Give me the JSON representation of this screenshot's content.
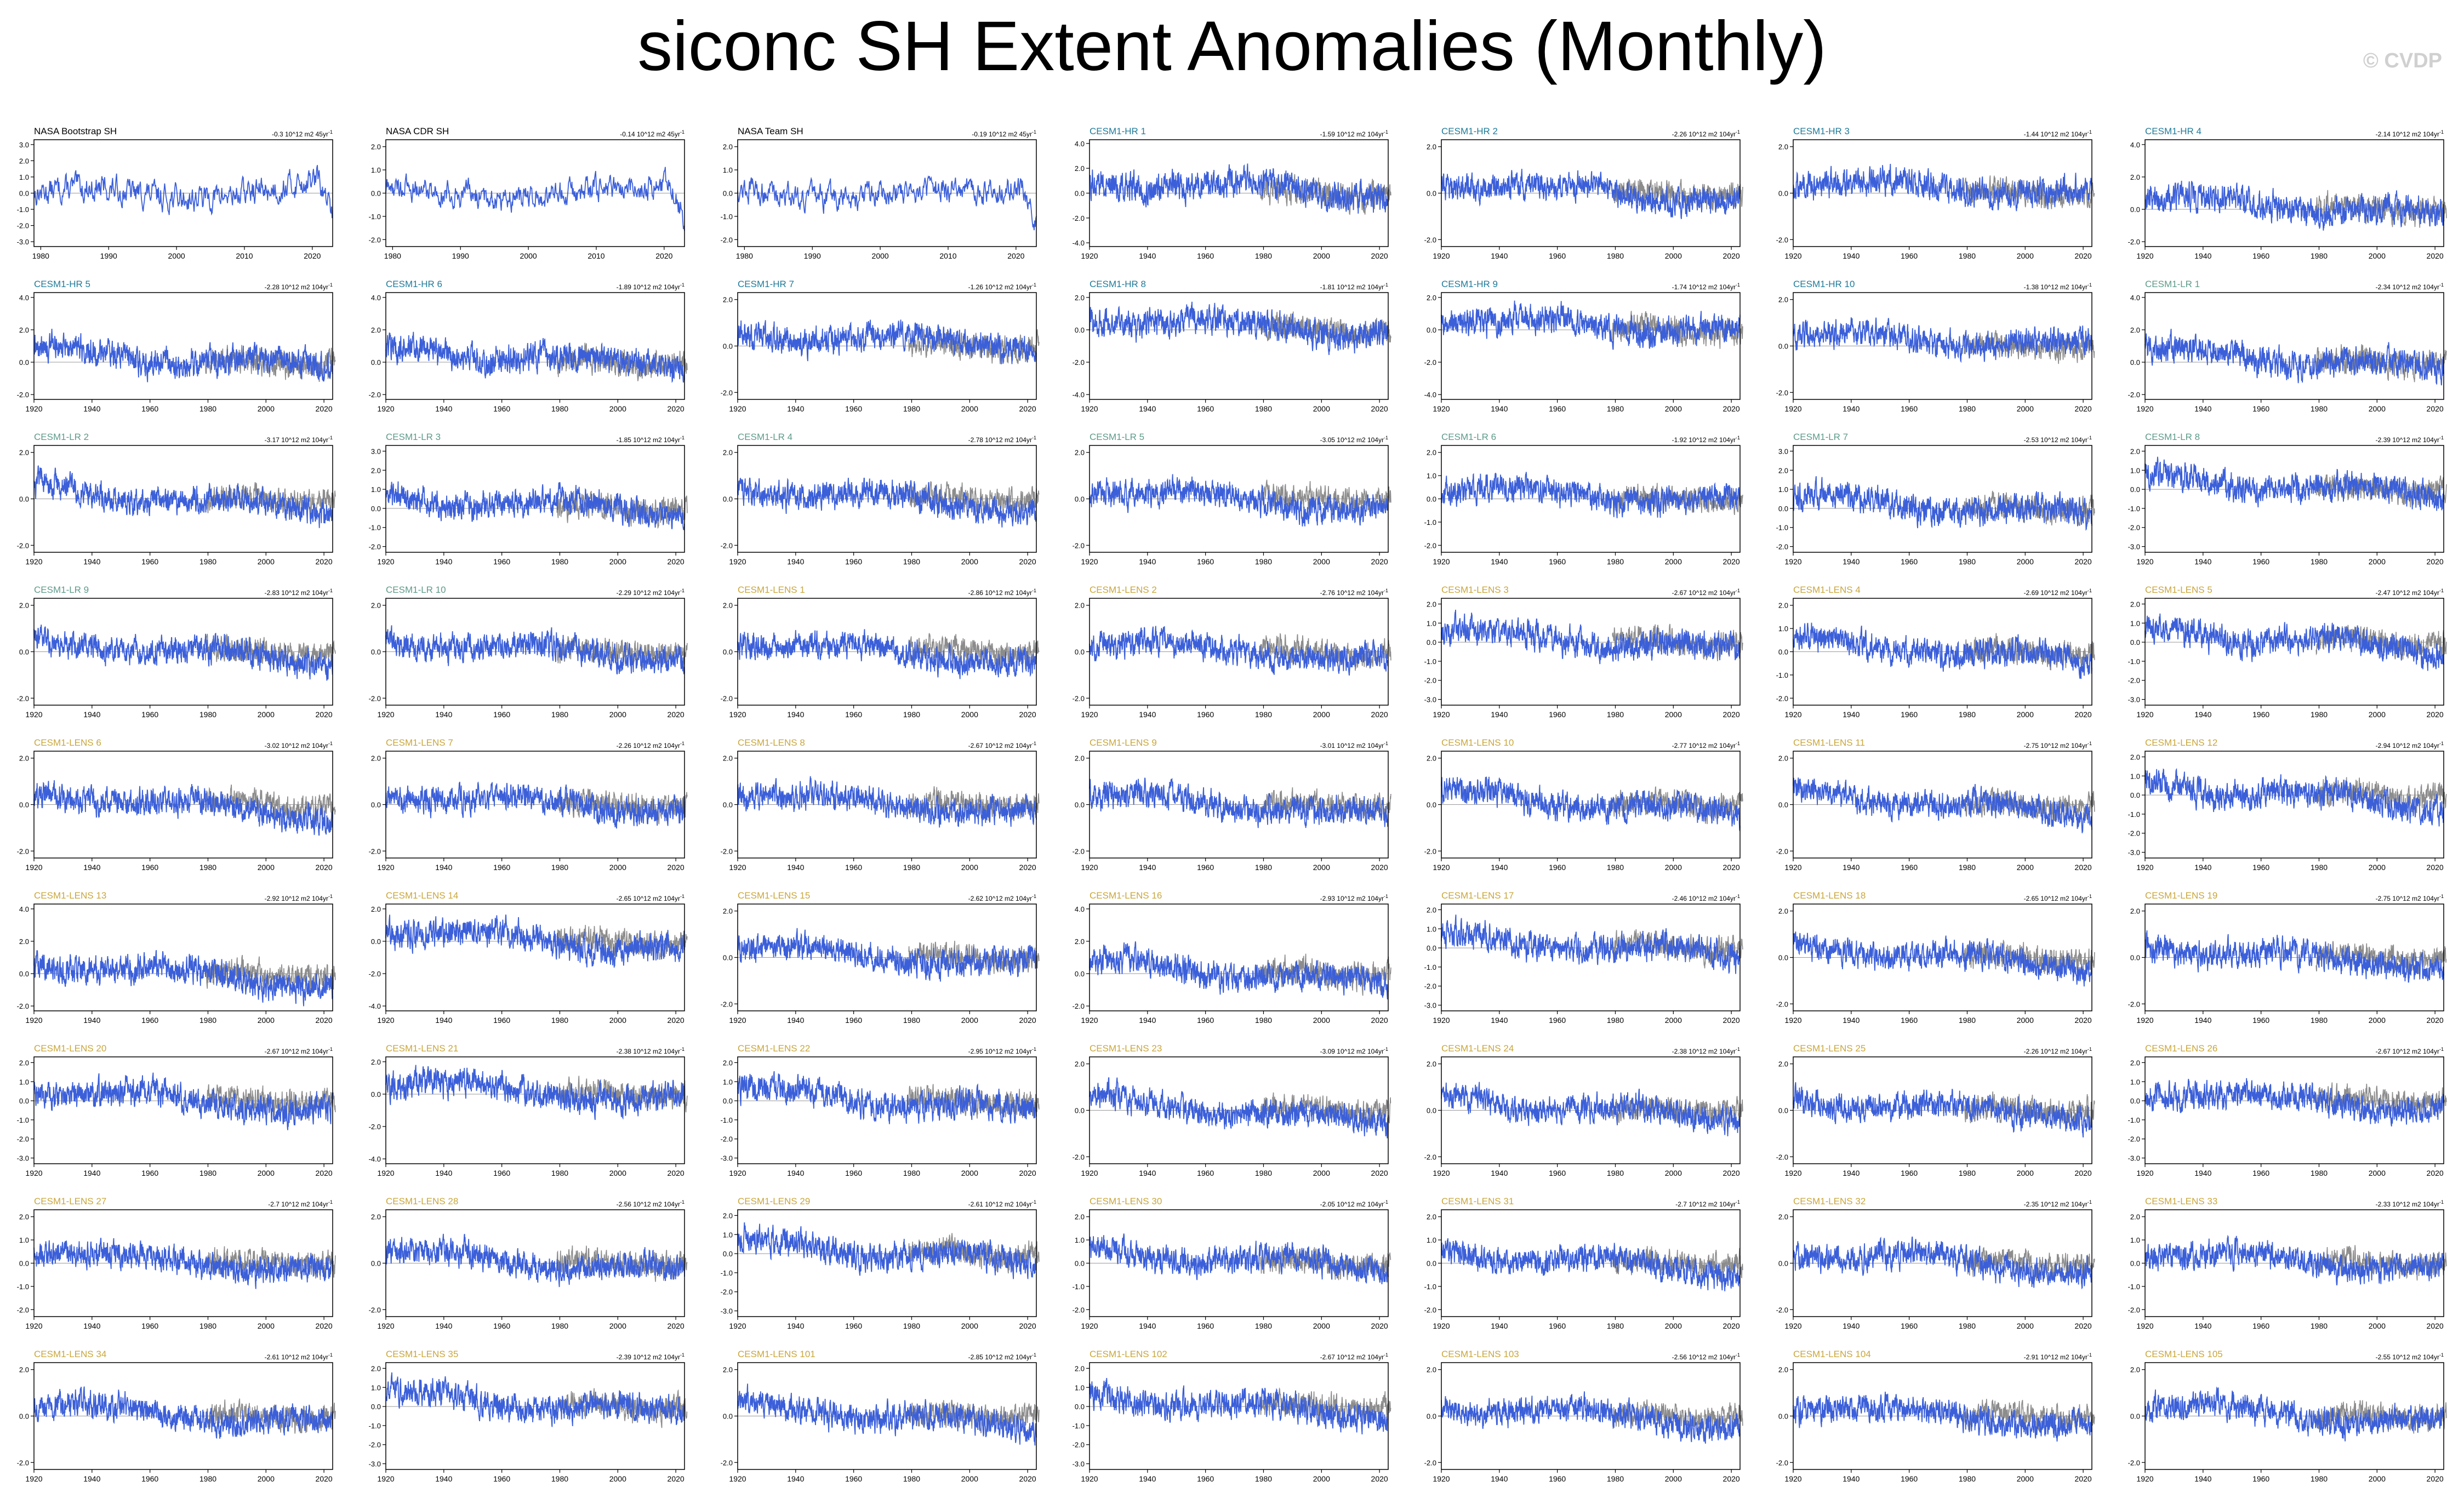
{
  "title": "siconc SH Extent Anomalies (Monthly)",
  "watermark": "© CVDP",
  "colors": {
    "model_line": "#3b5fd9",
    "obs_line": "#8c8c8c",
    "frame": "#000000",
    "obs_title": "#000000",
    "hr_title": "#1f7a99",
    "lr_title": "#5e9a8a",
    "lens_title": "#c9a63b"
  },
  "chart_data": {
    "type": "line",
    "panels": [
      {
        "title": "NASA Bootstrap SH",
        "trend": "-0.3 10^12 m2 45yr^-1",
        "group": "obs",
        "x_range": [
          1979,
          2023
        ],
        "x_ticks": [
          1980,
          1990,
          2000,
          2010,
          2020
        ],
        "y_ticks": [
          -3.0,
          -2.0,
          -1.0,
          0.0,
          1.0,
          2.0,
          3.0
        ]
      },
      {
        "title": "NASA CDR SH",
        "trend": "-0.14 10^12 m2 45yr^-1",
        "group": "obs",
        "x_range": [
          1979,
          2023
        ],
        "x_ticks": [
          1980,
          1990,
          2000,
          2010,
          2020
        ],
        "y_ticks": [
          -2.0,
          -1.0,
          0.0,
          1.0,
          2.0
        ]
      },
      {
        "title": "NASA Team SH",
        "trend": "-0.19 10^12 m2 45yr^-1",
        "group": "obs",
        "x_range": [
          1979,
          2023
        ],
        "x_ticks": [
          1980,
          1990,
          2000,
          2010,
          2020
        ],
        "y_ticks": [
          -2.0,
          -1.0,
          0.0,
          1.0,
          2.0
        ]
      },
      {
        "title": "CESM1-HR 1",
        "trend": "-1.59 10^12 m2 104yr^-1",
        "group": "hr",
        "y_ticks": [
          -4.0,
          -2.0,
          0.0,
          2.0,
          4.0
        ]
      },
      {
        "title": "CESM1-HR 2",
        "trend": "-2.26 10^12 m2 104yr^-1",
        "group": "hr",
        "y_ticks": [
          -2.0,
          0.0,
          2.0
        ]
      },
      {
        "title": "CESM1-HR 3",
        "trend": "-1.44 10^12 m2 104yr^-1",
        "group": "hr",
        "y_ticks": [
          -2.0,
          0.0,
          2.0
        ]
      },
      {
        "title": "CESM1-HR 4",
        "trend": "-2.14 10^12 m2 104yr^-1",
        "group": "hr",
        "y_ticks": [
          -2.0,
          0.0,
          2.0,
          4.0
        ]
      },
      {
        "title": "CESM1-HR 5",
        "trend": "-2.28 10^12 m2 104yr^-1",
        "group": "hr",
        "y_ticks": [
          -2.0,
          0.0,
          2.0,
          4.0
        ]
      },
      {
        "title": "CESM1-HR 6",
        "trend": "-1.89 10^12 m2 104yr^-1",
        "group": "hr",
        "y_ticks": [
          -2.0,
          0.0,
          2.0,
          4.0
        ]
      },
      {
        "title": "CESM1-HR 7",
        "trend": "-1.26 10^12 m2 104yr^-1",
        "group": "hr",
        "y_ticks": [
          -2.0,
          0.0,
          2.0
        ]
      },
      {
        "title": "CESM1-HR 8",
        "trend": "-1.81 10^12 m2 104yr^-1",
        "group": "hr",
        "y_ticks": [
          -4.0,
          -2.0,
          0.0,
          2.0
        ]
      },
      {
        "title": "CESM1-HR 9",
        "trend": "-1.74 10^12 m2 104yr^-1",
        "group": "hr",
        "y_ticks": [
          -4.0,
          -2.0,
          0.0,
          2.0
        ]
      },
      {
        "title": "CESM1-HR 10",
        "trend": "-1.38 10^12 m2 104yr^-1",
        "group": "hr",
        "y_ticks": [
          -2.0,
          0.0,
          2.0
        ]
      },
      {
        "title": "CESM1-LR 1",
        "trend": "-2.34 10^12 m2 104yr^-1",
        "group": "lr",
        "y_ticks": [
          -2.0,
          0.0,
          2.0,
          4.0
        ]
      },
      {
        "title": "CESM1-LR 2",
        "trend": "-3.17 10^12 m2 104yr^-1",
        "group": "lr",
        "y_ticks": [
          -2.0,
          0.0,
          2.0
        ]
      },
      {
        "title": "CESM1-LR 3",
        "trend": "-1.85 10^12 m2 104yr^-1",
        "group": "lr",
        "y_ticks": [
          -2.0,
          -1.0,
          0.0,
          1.0,
          2.0,
          3.0
        ]
      },
      {
        "title": "CESM1-LR 4",
        "trend": "-2.78 10^12 m2 104yr^-1",
        "group": "lr",
        "y_ticks": [
          -2.0,
          0.0,
          2.0
        ]
      },
      {
        "title": "CESM1-LR 5",
        "trend": "-3.05 10^12 m2 104yr^-1",
        "group": "lr",
        "y_ticks": [
          -2.0,
          0.0,
          2.0
        ]
      },
      {
        "title": "CESM1-LR 6",
        "trend": "-1.92 10^12 m2 104yr^-1",
        "group": "lr",
        "y_ticks": [
          -2.0,
          -1.0,
          0.0,
          1.0,
          2.0
        ]
      },
      {
        "title": "CESM1-LR 7",
        "trend": "-2.53 10^12 m2 104yr^-1",
        "group": "lr",
        "y_ticks": [
          -2.0,
          -1.0,
          0.0,
          1.0,
          2.0,
          3.0
        ]
      },
      {
        "title": "CESM1-LR 8",
        "trend": "-2.39 10^12 m2 104yr^-1",
        "group": "lr",
        "y_ticks": [
          -3.0,
          -2.0,
          -1.0,
          0.0,
          1.0,
          2.0
        ]
      },
      {
        "title": "CESM1-LR 9",
        "trend": "-2.83 10^12 m2 104yr^-1",
        "group": "lr",
        "y_ticks": [
          -2.0,
          0.0,
          2.0
        ]
      },
      {
        "title": "CESM1-LR 10",
        "trend": "-2.29 10^12 m2 104yr^-1",
        "group": "lr",
        "y_ticks": [
          -2.0,
          0.0,
          2.0
        ]
      },
      {
        "title": "CESM1-LENS 1",
        "trend": "-2.86 10^12 m2 104yr^-1",
        "group": "lens",
        "y_ticks": [
          -2.0,
          0.0,
          2.0
        ]
      },
      {
        "title": "CESM1-LENS 2",
        "trend": "-2.76 10^12 m2 104yr^-1",
        "group": "lens",
        "y_ticks": [
          -2.0,
          0.0,
          2.0
        ]
      },
      {
        "title": "CESM1-LENS 3",
        "trend": "-2.67 10^12 m2 104yr^-1",
        "group": "lens",
        "y_ticks": [
          -3.0,
          -2.0,
          -1.0,
          0.0,
          1.0,
          2.0
        ]
      },
      {
        "title": "CESM1-LENS 4",
        "trend": "-2.69 10^12 m2 104yr^-1",
        "group": "lens",
        "y_ticks": [
          -2.0,
          -1.0,
          0.0,
          1.0,
          2.0
        ]
      },
      {
        "title": "CESM1-LENS 5",
        "trend": "-2.47 10^12 m2 104yr^-1",
        "group": "lens",
        "y_ticks": [
          -3.0,
          -2.0,
          -1.0,
          0.0,
          1.0,
          2.0
        ]
      },
      {
        "title": "CESM1-LENS 6",
        "trend": "-3.02 10^12 m2 104yr^-1",
        "group": "lens",
        "y_ticks": [
          -2.0,
          0.0,
          2.0
        ]
      },
      {
        "title": "CESM1-LENS 7",
        "trend": "-2.26 10^12 m2 104yr^-1",
        "group": "lens",
        "y_ticks": [
          -2.0,
          0.0,
          2.0
        ]
      },
      {
        "title": "CESM1-LENS 8",
        "trend": "-2.67 10^12 m2 104yr^-1",
        "group": "lens",
        "y_ticks": [
          -2.0,
          0.0,
          2.0
        ]
      },
      {
        "title": "CESM1-LENS 9",
        "trend": "-3.01 10^12 m2 104yr^-1",
        "group": "lens",
        "y_ticks": [
          -2.0,
          0.0,
          2.0
        ]
      },
      {
        "title": "CESM1-LENS 10",
        "trend": "-2.77 10^12 m2 104yr^-1",
        "group": "lens",
        "y_ticks": [
          -2.0,
          0.0,
          2.0
        ]
      },
      {
        "title": "CESM1-LENS 11",
        "trend": "-2.75 10^12 m2 104yr^-1",
        "group": "lens",
        "y_ticks": [
          -2.0,
          0.0,
          2.0
        ]
      },
      {
        "title": "CESM1-LENS 12",
        "trend": "-2.94 10^12 m2 104yr^-1",
        "group": "lens",
        "y_ticks": [
          -3.0,
          -2.0,
          -1.0,
          0.0,
          1.0,
          2.0
        ]
      },
      {
        "title": "CESM1-LENS 13",
        "trend": "-2.92 10^12 m2 104yr^-1",
        "group": "lens",
        "y_ticks": [
          -2.0,
          0.0,
          2.0,
          4.0
        ]
      },
      {
        "title": "CESM1-LENS 14",
        "trend": "-2.65 10^12 m2 104yr^-1",
        "group": "lens",
        "y_ticks": [
          -4.0,
          -2.0,
          0.0,
          2.0
        ]
      },
      {
        "title": "CESM1-LENS 15",
        "trend": "-2.62 10^12 m2 104yr^-1",
        "group": "lens",
        "y_ticks": [
          -2.0,
          0.0,
          2.0
        ]
      },
      {
        "title": "CESM1-LENS 16",
        "trend": "-2.93 10^12 m2 104yr^-1",
        "group": "lens",
        "y_ticks": [
          -2.0,
          0.0,
          2.0,
          4.0
        ]
      },
      {
        "title": "CESM1-LENS 17",
        "trend": "-2.46 10^12 m2 104yr^-1",
        "group": "lens",
        "y_ticks": [
          -3.0,
          -2.0,
          -1.0,
          0.0,
          1.0,
          2.0
        ]
      },
      {
        "title": "CESM1-LENS 18",
        "trend": "-2.65 10^12 m2 104yr^-1",
        "group": "lens",
        "y_ticks": [
          -2.0,
          0.0,
          2.0
        ]
      },
      {
        "title": "CESM1-LENS 19",
        "trend": "-2.75 10^12 m2 104yr^-1",
        "group": "lens",
        "y_ticks": [
          -2.0,
          0.0,
          2.0
        ]
      },
      {
        "title": "CESM1-LENS 20",
        "trend": "-2.67 10^12 m2 104yr^-1",
        "group": "lens",
        "y_ticks": [
          -3.0,
          -2.0,
          -1.0,
          0.0,
          1.0,
          2.0
        ]
      },
      {
        "title": "CESM1-LENS 21",
        "trend": "-2.38 10^12 m2 104yr^-1",
        "group": "lens",
        "y_ticks": [
          -4.0,
          -2.0,
          0.0,
          2.0
        ]
      },
      {
        "title": "CESM1-LENS 22",
        "trend": "-2.95 10^12 m2 104yr^-1",
        "group": "lens",
        "y_ticks": [
          -3.0,
          -2.0,
          -1.0,
          0.0,
          1.0,
          2.0
        ]
      },
      {
        "title": "CESM1-LENS 23",
        "trend": "-3.09 10^12 m2 104yr^-1",
        "group": "lens",
        "y_ticks": [
          -2.0,
          0.0,
          2.0
        ]
      },
      {
        "title": "CESM1-LENS 24",
        "trend": "-2.38 10^12 m2 104yr^-1",
        "group": "lens",
        "y_ticks": [
          -2.0,
          0.0,
          2.0
        ]
      },
      {
        "title": "CESM1-LENS 25",
        "trend": "-2.26 10^12 m2 104yr^-1",
        "group": "lens",
        "y_ticks": [
          -2.0,
          0.0,
          2.0
        ]
      },
      {
        "title": "CESM1-LENS 26",
        "trend": "-2.67 10^12 m2 104yr^-1",
        "group": "lens",
        "y_ticks": [
          -3.0,
          -2.0,
          -1.0,
          0.0,
          1.0,
          2.0
        ]
      },
      {
        "title": "CESM1-LENS 27",
        "trend": "-2.7 10^12 m2 104yr^-1",
        "group": "lens",
        "y_ticks": [
          -2.0,
          -1.0,
          0.0,
          1.0,
          2.0
        ]
      },
      {
        "title": "CESM1-LENS 28",
        "trend": "-2.56 10^12 m2 104yr^-1",
        "group": "lens",
        "y_ticks": [
          -2.0,
          0.0,
          2.0
        ]
      },
      {
        "title": "CESM1-LENS 29",
        "trend": "-2.61 10^12 m2 104yr^-1",
        "group": "lens",
        "y_ticks": [
          -3.0,
          -2.0,
          -1.0,
          0.0,
          1.0,
          2.0
        ]
      },
      {
        "title": "CESM1-LENS 30",
        "trend": "-2.05 10^12 m2 104yr^-1",
        "group": "lens",
        "y_ticks": [
          -2.0,
          -1.0,
          0.0,
          1.0,
          2.0
        ]
      },
      {
        "title": "CESM1-LENS 31",
        "trend": "-2.7 10^12 m2 104yr^-1",
        "group": "lens",
        "y_ticks": [
          -2.0,
          -1.0,
          0.0,
          1.0,
          2.0
        ]
      },
      {
        "title": "CESM1-LENS 32",
        "trend": "-2.35 10^12 m2 104yr^-1",
        "group": "lens",
        "y_ticks": [
          -2.0,
          0.0,
          2.0
        ]
      },
      {
        "title": "CESM1-LENS 33",
        "trend": "-2.33 10^12 m2 104yr^-1",
        "group": "lens",
        "y_ticks": [
          -2.0,
          -1.0,
          0.0,
          1.0,
          2.0
        ]
      },
      {
        "title": "CESM1-LENS 34",
        "trend": "-2.61 10^12 m2 104yr^-1",
        "group": "lens",
        "y_ticks": [
          -2.0,
          0.0,
          2.0
        ]
      },
      {
        "title": "CESM1-LENS 35",
        "trend": "-2.39 10^12 m2 104yr^-1",
        "group": "lens",
        "y_ticks": [
          -3.0,
          -2.0,
          -1.0,
          0.0,
          1.0,
          2.0
        ]
      },
      {
        "title": "CESM1-LENS 101",
        "trend": "-2.85 10^12 m2 104yr^-1",
        "group": "lens",
        "y_ticks": [
          -2.0,
          0.0,
          2.0
        ]
      },
      {
        "title": "CESM1-LENS 102",
        "trend": "-2.67 10^12 m2 104yr^-1",
        "group": "lens",
        "y_ticks": [
          -3.0,
          -2.0,
          -1.0,
          0.0,
          1.0,
          2.0
        ]
      },
      {
        "title": "CESM1-LENS 103",
        "trend": "-2.56 10^12 m2 104yr^-1",
        "group": "lens",
        "y_ticks": [
          -2.0,
          0.0,
          2.0
        ]
      },
      {
        "title": "CESM1-LENS 104",
        "trend": "-2.91 10^12 m2 104yr^-1",
        "group": "lens",
        "y_ticks": [
          -2.0,
          0.0,
          2.0
        ]
      },
      {
        "title": "CESM1-LENS 105",
        "trend": "-2.55 10^12 m2 104yr^-1",
        "group": "lens",
        "y_ticks": [
          -2.0,
          0.0,
          2.0
        ]
      }
    ],
    "model_x_range": [
      1920,
      2023
    ],
    "model_x_ticks": [
      1920,
      1940,
      1960,
      1980,
      2000,
      2020
    ],
    "obs_overlay_range": [
      1979,
      2023
    ],
    "y_unit": "10^12 m2",
    "grid": false
  }
}
